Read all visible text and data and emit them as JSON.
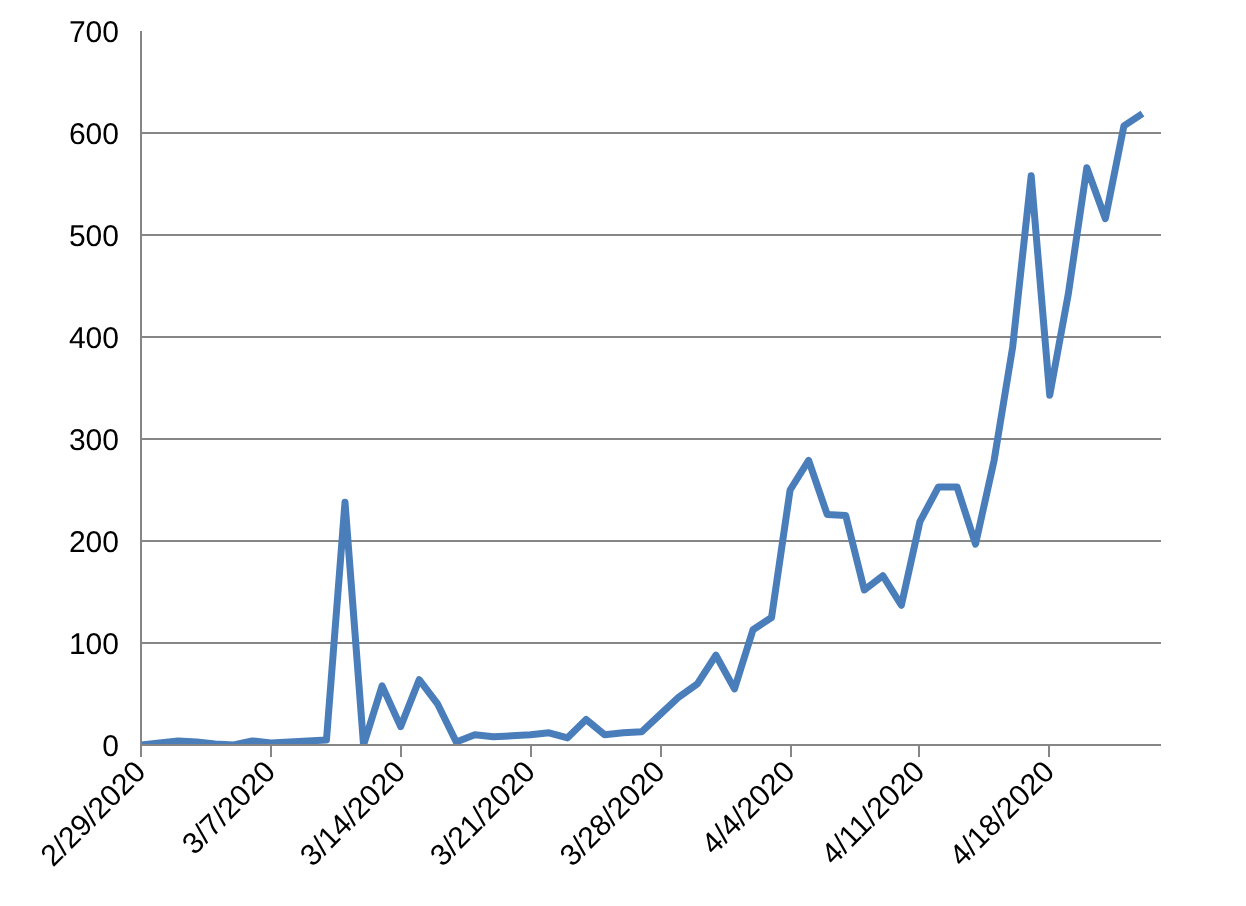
{
  "chart_data": {
    "type": "line",
    "x": [
      "2020-02-29",
      "2020-03-01",
      "2020-03-02",
      "2020-03-03",
      "2020-03-04",
      "2020-03-05",
      "2020-03-06",
      "2020-03-07",
      "2020-03-08",
      "2020-03-09",
      "2020-03-10",
      "2020-03-11",
      "2020-03-12",
      "2020-03-13",
      "2020-03-14",
      "2020-03-15",
      "2020-03-16",
      "2020-03-17",
      "2020-03-18",
      "2020-03-19",
      "2020-03-20",
      "2020-03-21",
      "2020-03-22",
      "2020-03-23",
      "2020-03-24",
      "2020-03-25",
      "2020-03-26",
      "2020-03-27",
      "2020-03-28",
      "2020-03-29",
      "2020-03-30",
      "2020-03-31",
      "2020-04-01",
      "2020-04-02",
      "2020-04-03",
      "2020-04-04",
      "2020-04-05",
      "2020-04-06",
      "2020-04-07",
      "2020-04-08",
      "2020-04-09",
      "2020-04-10",
      "2020-04-11",
      "2020-04-12",
      "2020-04-13",
      "2020-04-14",
      "2020-04-15",
      "2020-04-16",
      "2020-04-17",
      "2020-04-18",
      "2020-04-19",
      "2020-04-20",
      "2020-04-21",
      "2020-04-22",
      "2020-04-23"
    ],
    "series": [
      {
        "color": "#4a7ebb",
        "values": [
          0,
          2,
          4,
          3,
          1,
          0,
          4,
          2,
          3,
          4,
          5,
          238,
          0,
          58,
          18,
          64,
          40,
          3,
          10,
          8,
          9,
          10,
          12,
          7,
          25,
          10,
          12,
          13,
          30,
          47,
          60,
          88,
          55,
          113,
          125,
          250,
          279,
          226,
          225,
          152,
          166,
          137,
          219,
          253,
          253,
          197,
          279,
          390,
          558,
          343,
          442,
          566,
          516,
          607,
          619
        ]
      }
    ],
    "xlim": [
      "2020-02-29",
      "2020-04-24"
    ],
    "xticks": [
      {
        "value": "2020-02-29",
        "label": "2/29/2020"
      },
      {
        "value": "2020-03-07",
        "label": "3/7/2020"
      },
      {
        "value": "2020-03-14",
        "label": "3/14/2020"
      },
      {
        "value": "2020-03-21",
        "label": "3/21/2020"
      },
      {
        "value": "2020-03-28",
        "label": "3/28/2020"
      },
      {
        "value": "2020-04-04",
        "label": "4/4/2020"
      },
      {
        "value": "2020-04-11",
        "label": "4/11/2020"
      },
      {
        "value": "2020-04-18",
        "label": "4/18/2020"
      }
    ],
    "ylim": [
      0,
      700
    ],
    "yticks": [
      0,
      100,
      200,
      300,
      400,
      500,
      600,
      700
    ],
    "grid": "y",
    "marker": "none",
    "line_style": "solid"
  }
}
